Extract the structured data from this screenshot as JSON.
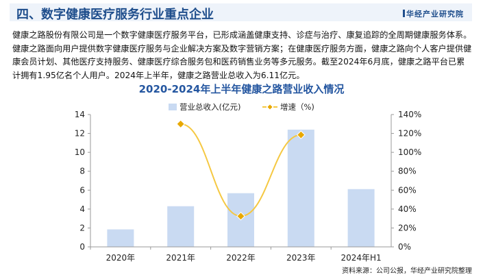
{
  "header": {
    "title": "四、数字健康医疗服务行业重点企业",
    "logo": "华经产业研究院"
  },
  "paragraph": "健康之路股份有限公司是一个数字健康医疗服务平台，已形成涵盖健康支持、诊症与治疗、康复追踪的全周期健康服务体系。健康之路面向用户提供数字健康医疗服务与企业解决方案及数字营销方案；在健康医疗服务方面，健康之路向个人客户提供健康会员计划、其他医疗支持服务、健康医疗综合服务包和医药销售业务等多元服务。截至2024年6月底，健康之路平台已累计拥有1.95亿名个人用户。2024年上半年，健康之路营业总收入为6.11亿元。",
  "source": "资料来源：公司公报，华经产业研究院整理",
  "chart_data": {
    "type": "bar+line",
    "title": "2020-2024年上半年健康之路营业收入情况",
    "categories": [
      "2020年",
      "2021年",
      "2022年",
      "2023年",
      "2024年H1"
    ],
    "series": [
      {
        "name": "营业总收入(亿元)",
        "type": "bar",
        "axis": "left",
        "color": "#c9daf2",
        "values": [
          1.85,
          4.3,
          5.68,
          12.4,
          6.11
        ]
      },
      {
        "name": "增速（%)",
        "type": "line",
        "axis": "right",
        "color": "#f5c842",
        "values": [
          null,
          130,
          32.5,
          118.5,
          null
        ]
      }
    ],
    "yleft": {
      "range": [
        0,
        14
      ],
      "ticks": [
        "0",
        "2",
        "4",
        "6",
        "8",
        "10",
        "12",
        "14"
      ]
    },
    "yright": {
      "range": [
        0,
        140
      ],
      "ticks": [
        "0%",
        "20%",
        "40%",
        "60%",
        "80%",
        "100%",
        "120%",
        "140%"
      ]
    },
    "legend": "top-center",
    "grid": false
  }
}
